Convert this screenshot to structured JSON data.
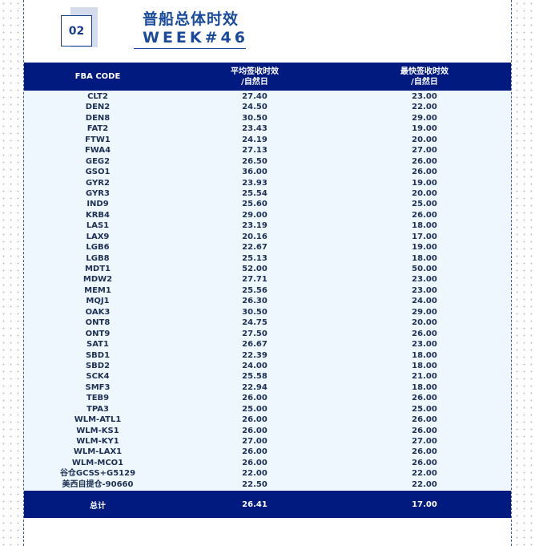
{
  "badge": "02",
  "title": "普船总体时效",
  "subtitle": "WEEK#46",
  "colors": {
    "header_bg": "#001a80",
    "row_bg": "#eef7fe",
    "title": "#1a4a9c"
  },
  "table": {
    "headers": [
      "FBA CODE",
      "平均签收时效",
      "/自然日",
      "最快签收时效",
      "/自然日"
    ],
    "rows": [
      [
        "CLT2",
        "27.40",
        "23.00"
      ],
      [
        "DEN2",
        "24.50",
        "22.00"
      ],
      [
        "DEN8",
        "30.50",
        "29.00"
      ],
      [
        "FAT2",
        "23.43",
        "19.00"
      ],
      [
        "FTW1",
        "24.19",
        "20.00"
      ],
      [
        "FWA4",
        "27.13",
        "27.00"
      ],
      [
        "GEG2",
        "26.50",
        "26.00"
      ],
      [
        "GSO1",
        "36.00",
        "26.00"
      ],
      [
        "GYR2",
        "23.93",
        "19.00"
      ],
      [
        "GYR3",
        "25.54",
        "20.00"
      ],
      [
        "IND9",
        "25.60",
        "25.00"
      ],
      [
        "KRB4",
        "29.00",
        "26.00"
      ],
      [
        "LAS1",
        "23.19",
        "18.00"
      ],
      [
        "LAX9",
        "20.16",
        "17.00"
      ],
      [
        "LGB6",
        "22.67",
        "19.00"
      ],
      [
        "LGB8",
        "25.13",
        "18.00"
      ],
      [
        "MDT1",
        "52.00",
        "50.00"
      ],
      [
        "MDW2",
        "27.71",
        "23.00"
      ],
      [
        "MEM1",
        "25.56",
        "23.00"
      ],
      [
        "MQJ1",
        "26.30",
        "24.00"
      ],
      [
        "OAK3",
        "30.50",
        "29.00"
      ],
      [
        "ONT8",
        "24.75",
        "20.00"
      ],
      [
        "ONT9",
        "27.50",
        "26.00"
      ],
      [
        "SAT1",
        "26.67",
        "23.00"
      ],
      [
        "SBD1",
        "22.39",
        "18.00"
      ],
      [
        "SBD2",
        "24.00",
        "18.00"
      ],
      [
        "SCK4",
        "25.58",
        "21.00"
      ],
      [
        "SMF3",
        "22.94",
        "18.00"
      ],
      [
        "TEB9",
        "26.00",
        "26.00"
      ],
      [
        "TPA3",
        "25.00",
        "25.00"
      ],
      [
        "WLM-ATL1",
        "26.00",
        "26.00"
      ],
      [
        "WLM-KS1",
        "26.00",
        "26.00"
      ],
      [
        "WLM-KY1",
        "27.00",
        "27.00"
      ],
      [
        "WLM-LAX1",
        "26.00",
        "26.00"
      ],
      [
        "WLM-MCO1",
        "26.00",
        "26.00"
      ],
      [
        "谷仓GCSS+G5129",
        "22.00",
        "22.00"
      ],
      [
        "美西自提仓-90660",
        "22.50",
        "22.00"
      ]
    ],
    "total": [
      "总计",
      "26.41",
      "17.00"
    ]
  }
}
